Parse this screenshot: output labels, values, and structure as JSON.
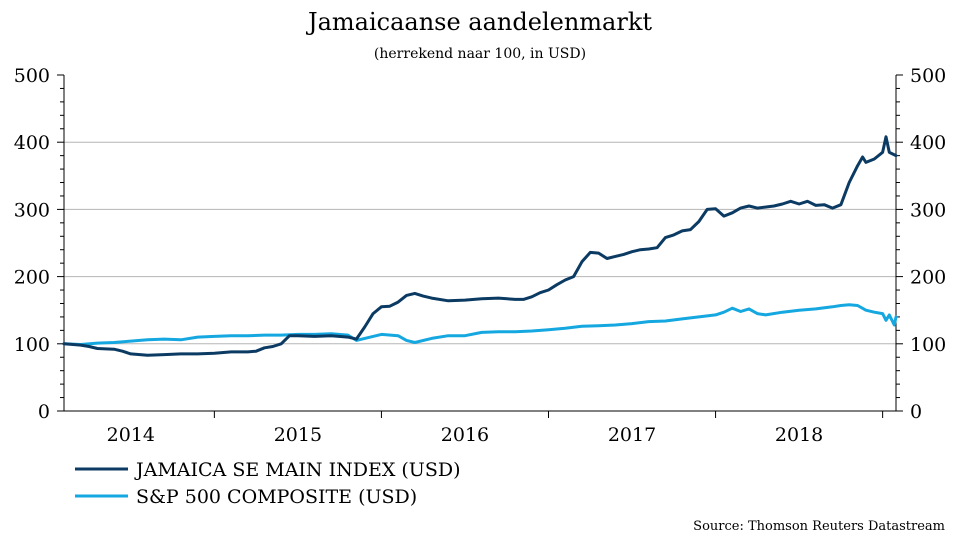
{
  "chart_data": {
    "type": "line",
    "title": "Jamaicaanse aandelenmarkt",
    "subtitle": "(herrekend naar 100, in USD)",
    "source": "Source: Thomson Reuters Datastream",
    "ylim": [
      0,
      500
    ],
    "yticks": [
      "0",
      "100",
      "200",
      "300",
      "400",
      "500"
    ],
    "xlim": [
      2013.6,
      2018.58
    ],
    "xticks": [
      {
        "label": "2014",
        "at": 2014.0
      },
      {
        "label": "2015",
        "at": 2015.0
      },
      {
        "label": "2016",
        "at": 2016.0
      },
      {
        "label": "2017",
        "at": 2017.0
      },
      {
        "label": "2018",
        "at": 2018.0
      }
    ],
    "grid": true,
    "legend_position": "bottom-left",
    "series": [
      {
        "name": "JAMAICA SE MAIN INDEX (USD)",
        "color": "#0b3a63",
        "points": [
          [
            2013.6,
            100
          ],
          [
            2013.7,
            98
          ],
          [
            2013.75,
            96
          ],
          [
            2013.8,
            93
          ],
          [
            2013.9,
            92
          ],
          [
            2013.95,
            89
          ],
          [
            2014.0,
            85
          ],
          [
            2014.1,
            83
          ],
          [
            2014.2,
            84
          ],
          [
            2014.3,
            85
          ],
          [
            2014.4,
            85
          ],
          [
            2014.5,
            86
          ],
          [
            2014.6,
            88
          ],
          [
            2014.7,
            88
          ],
          [
            2014.75,
            89
          ],
          [
            2014.8,
            94
          ],
          [
            2014.85,
            96
          ],
          [
            2014.9,
            100
          ],
          [
            2014.95,
            112
          ],
          [
            2015.0,
            112
          ],
          [
            2015.1,
            111
          ],
          [
            2015.2,
            112
          ],
          [
            2015.3,
            110
          ],
          [
            2015.35,
            107
          ],
          [
            2015.4,
            125
          ],
          [
            2015.45,
            145
          ],
          [
            2015.5,
            155
          ],
          [
            2015.55,
            156
          ],
          [
            2015.6,
            162
          ],
          [
            2015.65,
            172
          ],
          [
            2015.7,
            175
          ],
          [
            2015.75,
            171
          ],
          [
            2015.8,
            168
          ],
          [
            2015.9,
            164
          ],
          [
            2016.0,
            165
          ],
          [
            2016.1,
            167
          ],
          [
            2016.2,
            168
          ],
          [
            2016.3,
            166
          ],
          [
            2016.35,
            166
          ],
          [
            2016.4,
            170
          ],
          [
            2016.45,
            176
          ],
          [
            2016.5,
            180
          ],
          [
            2016.55,
            188
          ],
          [
            2016.6,
            195
          ],
          [
            2016.65,
            200
          ],
          [
            2016.7,
            222
          ],
          [
            2016.75,
            236
          ],
          [
            2016.8,
            235
          ],
          [
            2016.85,
            227
          ],
          [
            2016.9,
            230
          ],
          [
            2016.95,
            233
          ],
          [
            2017.0,
            237
          ],
          [
            2017.05,
            240
          ],
          [
            2017.1,
            241
          ],
          [
            2017.15,
            243
          ],
          [
            2017.2,
            258
          ],
          [
            2017.25,
            262
          ],
          [
            2017.3,
            268
          ],
          [
            2017.35,
            270
          ],
          [
            2017.4,
            282
          ],
          [
            2017.45,
            300
          ],
          [
            2017.5,
            301
          ],
          [
            2017.55,
            290
          ],
          [
            2017.6,
            295
          ],
          [
            2017.65,
            302
          ],
          [
            2017.7,
            305
          ],
          [
            2017.75,
            302
          ],
          [
            2017.85,
            305
          ],
          [
            2017.9,
            308
          ],
          [
            2017.95,
            312
          ],
          [
            2018.0,
            308
          ],
          [
            2018.05,
            312
          ],
          [
            2018.1,
            306
          ],
          [
            2018.15,
            307
          ],
          [
            2018.2,
            302
          ],
          [
            2018.25,
            307
          ],
          [
            2018.3,
            340
          ],
          [
            2018.35,
            365
          ],
          [
            2018.38,
            378
          ],
          [
            2018.4,
            370
          ],
          [
            2018.45,
            375
          ],
          [
            2018.5,
            385
          ],
          [
            2018.52,
            408
          ],
          [
            2018.54,
            385
          ],
          [
            2018.58,
            380
          ]
        ]
      },
      {
        "name": "S&P 500 COMPOSITE (USD)",
        "color": "#14a7e0",
        "points": [
          [
            2013.6,
            100
          ],
          [
            2013.7,
            99
          ],
          [
            2013.8,
            101
          ],
          [
            2013.9,
            102
          ],
          [
            2014.0,
            104
          ],
          [
            2014.1,
            106
          ],
          [
            2014.2,
            107
          ],
          [
            2014.3,
            106
          ],
          [
            2014.4,
            110
          ],
          [
            2014.5,
            111
          ],
          [
            2014.6,
            112
          ],
          [
            2014.7,
            112
          ],
          [
            2014.8,
            113
          ],
          [
            2014.9,
            113
          ],
          [
            2015.0,
            114
          ],
          [
            2015.1,
            114
          ],
          [
            2015.2,
            115
          ],
          [
            2015.3,
            113
          ],
          [
            2015.35,
            105
          ],
          [
            2015.4,
            108
          ],
          [
            2015.5,
            114
          ],
          [
            2015.6,
            112
          ],
          [
            2015.65,
            105
          ],
          [
            2015.7,
            102
          ],
          [
            2015.8,
            108
          ],
          [
            2015.9,
            112
          ],
          [
            2016.0,
            112
          ],
          [
            2016.1,
            117
          ],
          [
            2016.2,
            118
          ],
          [
            2016.3,
            118
          ],
          [
            2016.4,
            119
          ],
          [
            2016.5,
            121
          ],
          [
            2016.6,
            123
          ],
          [
            2016.7,
            126
          ],
          [
            2016.8,
            127
          ],
          [
            2016.9,
            128
          ],
          [
            2017.0,
            130
          ],
          [
            2017.1,
            133
          ],
          [
            2017.2,
            134
          ],
          [
            2017.3,
            137
          ],
          [
            2017.4,
            140
          ],
          [
            2017.5,
            143
          ],
          [
            2017.55,
            147
          ],
          [
            2017.6,
            153
          ],
          [
            2017.65,
            148
          ],
          [
            2017.7,
            152
          ],
          [
            2017.75,
            145
          ],
          [
            2017.8,
            143
          ],
          [
            2017.9,
            147
          ],
          [
            2018.0,
            150
          ],
          [
            2018.1,
            152
          ],
          [
            2018.2,
            155
          ],
          [
            2018.25,
            157
          ],
          [
            2018.3,
            158
          ],
          [
            2018.35,
            157
          ],
          [
            2018.4,
            150
          ],
          [
            2018.45,
            147
          ],
          [
            2018.5,
            145
          ],
          [
            2018.52,
            135
          ],
          [
            2018.54,
            143
          ],
          [
            2018.57,
            128
          ],
          [
            2018.58,
            140
          ]
        ]
      }
    ]
  }
}
